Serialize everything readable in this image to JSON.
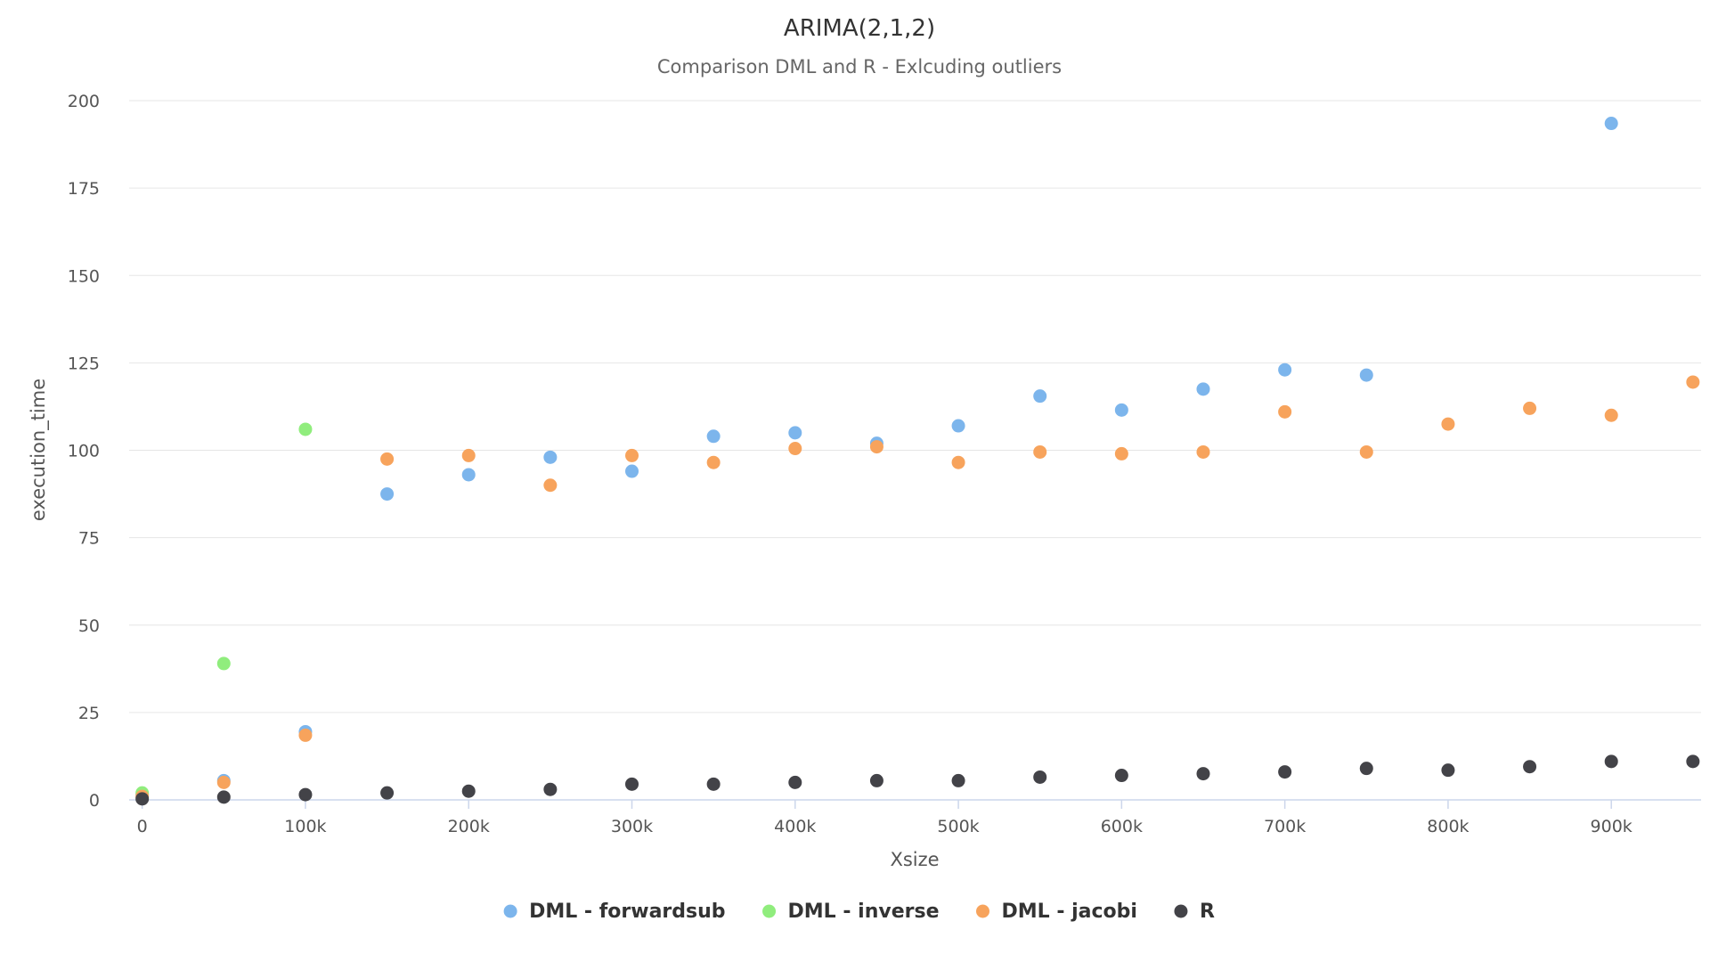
{
  "chart_data": {
    "type": "scatter",
    "title": "ARIMA(2,1,2)",
    "subtitle": "Comparison DML and R - Exlcuding outliers",
    "xlabel": "Xsize",
    "ylabel": "execution_time",
    "xlim": [
      -8000,
      955000
    ],
    "ylim": [
      0,
      200
    ],
    "x_ticks": [
      0,
      100000,
      200000,
      300000,
      400000,
      500000,
      600000,
      700000,
      800000,
      900000
    ],
    "x_tick_labels": [
      "0",
      "100k",
      "200k",
      "300k",
      "400k",
      "500k",
      "600k",
      "700k",
      "800k",
      "900k"
    ],
    "y_ticks": [
      0,
      25,
      50,
      75,
      100,
      125,
      150,
      175,
      200
    ],
    "y_tick_labels": [
      "0",
      "25",
      "50",
      "75",
      "100",
      "125",
      "150",
      "175",
      "200"
    ],
    "grid": true,
    "legend_position": "bottom-center",
    "series": [
      {
        "name": "DML - forwardsub",
        "color": "#7cb5ec",
        "points": [
          [
            0,
            1.5
          ],
          [
            50000,
            5.5
          ],
          [
            100000,
            19.5
          ],
          [
            150000,
            87.5
          ],
          [
            200000,
            93
          ],
          [
            250000,
            98
          ],
          [
            300000,
            94
          ],
          [
            350000,
            104
          ],
          [
            400000,
            105
          ],
          [
            450000,
            102
          ],
          [
            500000,
            107
          ],
          [
            550000,
            115.5
          ],
          [
            600000,
            111.5
          ],
          [
            650000,
            117.5
          ],
          [
            700000,
            123
          ],
          [
            750000,
            121.5
          ],
          [
            900000,
            193.5
          ]
        ]
      },
      {
        "name": "DML - inverse",
        "color": "#90ed7d",
        "points": [
          [
            0,
            2
          ],
          [
            50000,
            39
          ],
          [
            100000,
            106
          ]
        ]
      },
      {
        "name": "DML - jacobi",
        "color": "#f7a35c",
        "points": [
          [
            0,
            1
          ],
          [
            50000,
            5
          ],
          [
            100000,
            18.5
          ],
          [
            150000,
            97.5
          ],
          [
            200000,
            98.5
          ],
          [
            250000,
            90
          ],
          [
            300000,
            98.5
          ],
          [
            350000,
            96.5
          ],
          [
            400000,
            100.5
          ],
          [
            450000,
            101
          ],
          [
            500000,
            96.5
          ],
          [
            550000,
            99.5
          ],
          [
            600000,
            99
          ],
          [
            650000,
            99.5
          ],
          [
            700000,
            111
          ],
          [
            750000,
            99.5
          ],
          [
            800000,
            107.5
          ],
          [
            850000,
            112
          ],
          [
            900000,
            110
          ],
          [
            950000,
            119.5
          ]
        ]
      },
      {
        "name": "R",
        "color": "#434348",
        "points": [
          [
            0,
            0.3
          ],
          [
            50000,
            0.8
          ],
          [
            100000,
            1.5
          ],
          [
            150000,
            2
          ],
          [
            200000,
            2.5
          ],
          [
            250000,
            3
          ],
          [
            300000,
            4.5
          ],
          [
            350000,
            4.5
          ],
          [
            400000,
            5
          ],
          [
            450000,
            5.5
          ],
          [
            500000,
            5.5
          ],
          [
            550000,
            6.5
          ],
          [
            600000,
            7
          ],
          [
            650000,
            7.5
          ],
          [
            700000,
            8
          ],
          [
            750000,
            9
          ],
          [
            800000,
            8.5
          ],
          [
            850000,
            9.5
          ],
          [
            900000,
            11
          ],
          [
            950000,
            11
          ]
        ]
      }
    ]
  }
}
